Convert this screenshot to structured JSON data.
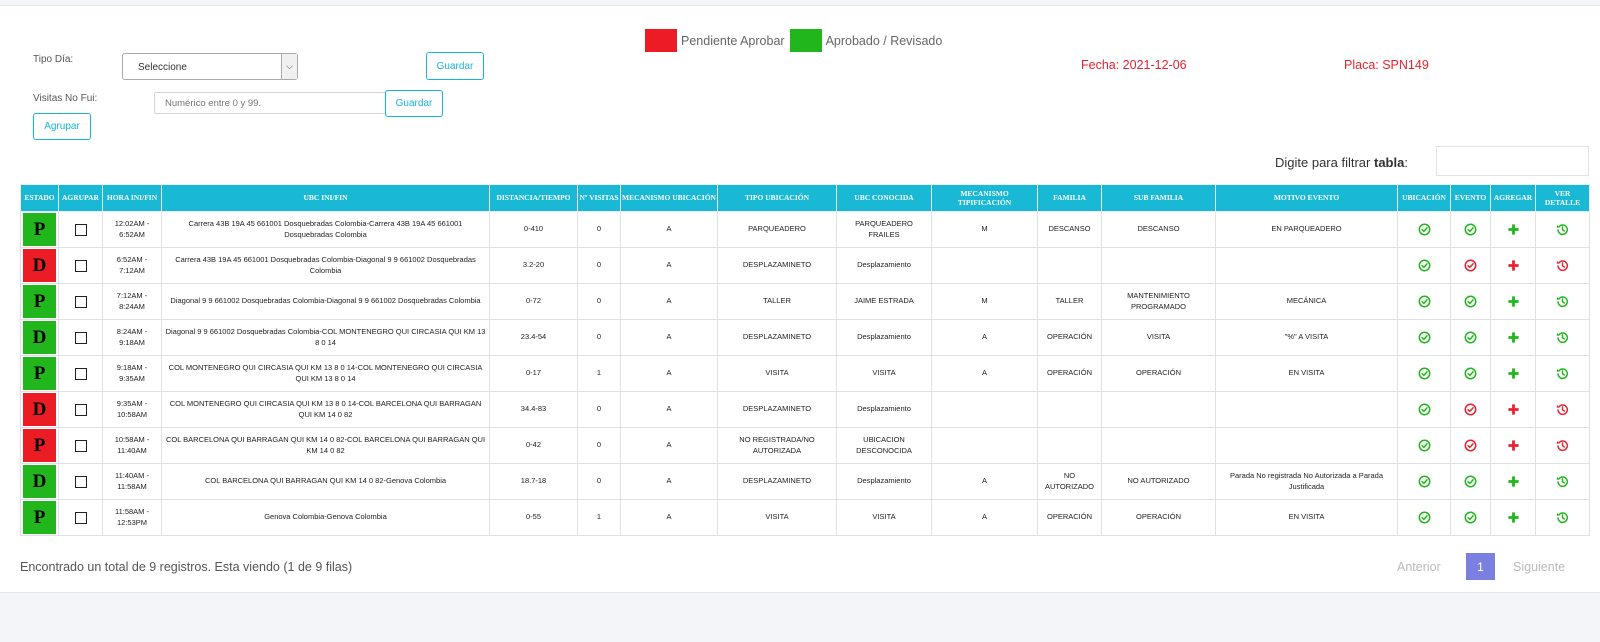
{
  "legend": {
    "pending": {
      "label": "Pendiente Aprobar",
      "color": "#ec1c24"
    },
    "approved": {
      "label": "Aprobado / Revisado",
      "color": "#22b61d"
    }
  },
  "form": {
    "tipo_dia_label": "Tipo Día:",
    "tipo_dia_value": "Seleccione",
    "guardar_label": "Guardar",
    "visitas_label": "Visitas No Fui:",
    "visitas_placeholder": "Numérico entre 0 y 99.",
    "agrupar_label": "Agrupar"
  },
  "info": {
    "fecha": "Fecha: 2021-12-06",
    "placa": "Placa: SPN149"
  },
  "filter": {
    "label": "Digite para filtrar ",
    "label_bold": "tabla",
    "colon": ":"
  },
  "table": {
    "headers": [
      "Estado",
      "Agrupar",
      "Hora Ini/Fin",
      "UBC Ini/Fin",
      "Distancia/Tiempo",
      "Nº Visitas",
      "Mecanismo Ubicación",
      "Tipo Ubicación",
      "UBC Conocida",
      "Mecanismo Tipificación",
      "Familia",
      "Sub Familia",
      "Motivo Evento",
      "Ubicación",
      "Evento",
      "Agregar",
      "Ver Detalle"
    ],
    "rows": [
      {
        "estado": "P",
        "estado_color": "#22b61d",
        "hora": "12:02AM - 6:52AM",
        "ubc": "Carrera 43B 19A 45 661001 Dosquebradas Colombia-Carrera 43B 19A 45 661001 Dosquebradas Colombia",
        "distancia": "0-410",
        "visitas": "0",
        "mec_ubic": "A",
        "tipo_ubic": "PARQUEADERO",
        "ubc_conocida": "PARQUEADERO FRAILES",
        "mec_tip": "M",
        "familia": "DESCANSO",
        "sub_familia": "DESCANSO",
        "motivo": "EN PARQUEADERO",
        "ubic_ok": true,
        "evento_ok": true,
        "agregar_ok": true,
        "detalle_ok": true
      },
      {
        "estado": "D",
        "estado_color": "#ec1c24",
        "hora": "6:52AM - 7:12AM",
        "ubc": "Carrera 43B 19A 45 661001 Dosquebradas Colombia-Diagonal 9 9 661002 Dosquebradas Colombia",
        "distancia": "3.2-20",
        "visitas": "0",
        "mec_ubic": "A",
        "tipo_ubic": "DESPLAZAMINETO",
        "ubc_conocida": "Desplazamiento",
        "mec_tip": "",
        "familia": "",
        "sub_familia": "",
        "motivo": "",
        "ubic_ok": true,
        "evento_ok": false,
        "agregar_ok": false,
        "detalle_ok": false
      },
      {
        "estado": "P",
        "estado_color": "#22b61d",
        "hora": "7:12AM - 8:24AM",
        "ubc": "Diagonal 9 9 661002 Dosquebradas Colombia-Diagonal 9 9 661002 Dosquebradas Colombia",
        "distancia": "0-72",
        "visitas": "0",
        "mec_ubic": "A",
        "tipo_ubic": "TALLER",
        "ubc_conocida": "JAIME ESTRADA",
        "mec_tip": "M",
        "familia": "TALLER",
        "sub_familia": "MANTENIMIENTO PROGRAMADO",
        "motivo": "MECÁNICA",
        "ubic_ok": true,
        "evento_ok": true,
        "agregar_ok": true,
        "detalle_ok": true
      },
      {
        "estado": "D",
        "estado_color": "#22b61d",
        "hora": "8:24AM - 9:18AM",
        "ubc": "Diagonal 9 9 661002 Dosquebradas Colombia-COL MONTENEGRO QUI CIRCASIA QUI KM 13 8 0 14",
        "distancia": "23.4-54",
        "visitas": "0",
        "mec_ubic": "A",
        "tipo_ubic": "DESPLAZAMINETO",
        "ubc_conocida": "Desplazamiento",
        "mec_tip": "A",
        "familia": "OPERACIÓN",
        "sub_familia": "VISITA",
        "motivo": "\"%\" A VISITA",
        "ubic_ok": true,
        "evento_ok": true,
        "agregar_ok": true,
        "detalle_ok": true
      },
      {
        "estado": "P",
        "estado_color": "#22b61d",
        "hora": "9:18AM - 9:35AM",
        "ubc": "COL MONTENEGRO QUI CIRCASIA QUI KM 13 8 0 14-COL MONTENEGRO QUI CIRCASIA QUI KM 13 8 0 14",
        "distancia": "0-17",
        "visitas": "1",
        "mec_ubic": "A",
        "tipo_ubic": "VISITA",
        "ubc_conocida": "VISITA",
        "mec_tip": "A",
        "familia": "OPERACIÓN",
        "sub_familia": "OPERACIÓN",
        "motivo": "EN VISITA",
        "ubic_ok": true,
        "evento_ok": true,
        "agregar_ok": true,
        "detalle_ok": true
      },
      {
        "estado": "D",
        "estado_color": "#ec1c24",
        "hora": "9:35AM - 10:58AM",
        "ubc": "COL MONTENEGRO QUI CIRCASIA QUI KM 13 8 0 14-COL BARCELONA QUI BARRAGAN QUI KM 14 0 82",
        "distancia": "34.4-83",
        "visitas": "0",
        "mec_ubic": "A",
        "tipo_ubic": "DESPLAZAMINETO",
        "ubc_conocida": "Desplazamiento",
        "mec_tip": "",
        "familia": "",
        "sub_familia": "",
        "motivo": "",
        "ubic_ok": true,
        "evento_ok": false,
        "agregar_ok": false,
        "detalle_ok": false
      },
      {
        "estado": "P",
        "estado_color": "#ec1c24",
        "hora": "10:58AM - 11:40AM",
        "ubc": "COL BARCELONA QUI BARRAGAN QUI KM 14 0 82-COL BARCELONA QUI BARRAGAN QUI KM 14 0 82",
        "distancia": "0-42",
        "visitas": "0",
        "mec_ubic": "A",
        "tipo_ubic": "NO REGISTRADA/NO AUTORIZADA",
        "ubc_conocida": "UBICACION DESCONOCIDA",
        "mec_tip": "",
        "familia": "",
        "sub_familia": "",
        "motivo": "",
        "ubic_ok": true,
        "evento_ok": false,
        "agregar_ok": false,
        "detalle_ok": false
      },
      {
        "estado": "D",
        "estado_color": "#22b61d",
        "hora": "11:40AM - 11:58AM",
        "ubc": "COL BARCELONA QUI BARRAGAN QUI KM 14 0 82-Genova Colombia",
        "distancia": "18.7-18",
        "visitas": "0",
        "mec_ubic": "A",
        "tipo_ubic": "DESPLAZAMINETO",
        "ubc_conocida": "Desplazamiento",
        "mec_tip": "A",
        "familia": "NO AUTORIZADO",
        "sub_familia": "NO AUTORIZADO",
        "motivo": "Parada No registrada No Autorizada a Parada Justificada",
        "ubic_ok": true,
        "evento_ok": true,
        "agregar_ok": true,
        "detalle_ok": true
      },
      {
        "estado": "P",
        "estado_color": "#22b61d",
        "hora": "11:58AM - 12:53PM",
        "ubc": "Genova Colombia-Genova Colombia",
        "distancia": "0-55",
        "visitas": "1",
        "mec_ubic": "A",
        "tipo_ubic": "VISITA",
        "ubc_conocida": "VISITA",
        "mec_tip": "A",
        "familia": "OPERACIÓN",
        "sub_familia": "OPERACIÓN",
        "motivo": "EN VISITA",
        "ubic_ok": true,
        "evento_ok": true,
        "agregar_ok": true,
        "detalle_ok": true
      }
    ]
  },
  "footer": {
    "summary": "Encontrado un total de 9 registros. Esta viendo (1 de 9 filas)",
    "prev": "Anterior",
    "page": "1",
    "next": "Siguiente"
  },
  "colors": {
    "header": "#19b9d5",
    "ok": "#22b61d",
    "bad": "#e8232f",
    "accent": "#16b7d6"
  }
}
